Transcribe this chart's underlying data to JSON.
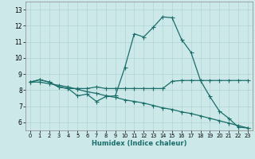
{
  "xlabel": "Humidex (Indice chaleur)",
  "bg_color": "#cce8e8",
  "grid_color": "#b0d4d4",
  "line_color": "#1a6e6a",
  "xlim": [
    -0.5,
    23.5
  ],
  "ylim": [
    5.5,
    13.5
  ],
  "yticks": [
    6,
    7,
    8,
    9,
    10,
    11,
    12,
    13
  ],
  "xticks": [
    0,
    1,
    2,
    3,
    4,
    5,
    6,
    7,
    8,
    9,
    10,
    11,
    12,
    13,
    14,
    15,
    16,
    17,
    18,
    19,
    20,
    21,
    22,
    23
  ],
  "line1_x": [
    0,
    1,
    2,
    3,
    4,
    5,
    6,
    7,
    8,
    9,
    10,
    11,
    12,
    13,
    14,
    15,
    16,
    17,
    18,
    19,
    20,
    21,
    22,
    23
  ],
  "line1_y": [
    8.5,
    8.65,
    8.5,
    8.2,
    8.1,
    7.65,
    7.75,
    7.3,
    7.6,
    7.65,
    9.4,
    11.5,
    11.3,
    11.9,
    12.55,
    12.5,
    11.15,
    10.35,
    8.6,
    7.6,
    6.7,
    6.25,
    5.7,
    5.65
  ],
  "line2_x": [
    0,
    1,
    2,
    3,
    4,
    5,
    6,
    7,
    8,
    9,
    10,
    11,
    12,
    13,
    14,
    15,
    16,
    17,
    18,
    19,
    20,
    21,
    22,
    23
  ],
  "line2_y": [
    8.5,
    8.65,
    8.5,
    8.2,
    8.1,
    8.1,
    8.1,
    8.2,
    8.1,
    8.1,
    8.1,
    8.1,
    8.1,
    8.1,
    8.1,
    8.55,
    8.6,
    8.6,
    8.6,
    8.6,
    8.6,
    8.6,
    8.6,
    8.6
  ],
  "line3_x": [
    0,
    1,
    2,
    3,
    4,
    5,
    6,
    7,
    8,
    9,
    10,
    11,
    12,
    13,
    14,
    15,
    16,
    17,
    18,
    19,
    20,
    21,
    22,
    23
  ],
  "line3_y": [
    8.5,
    8.5,
    8.4,
    8.3,
    8.2,
    8.05,
    7.9,
    7.8,
    7.65,
    7.55,
    7.4,
    7.3,
    7.2,
    7.05,
    6.9,
    6.8,
    6.65,
    6.55,
    6.4,
    6.25,
    6.1,
    5.95,
    5.8,
    5.65
  ]
}
